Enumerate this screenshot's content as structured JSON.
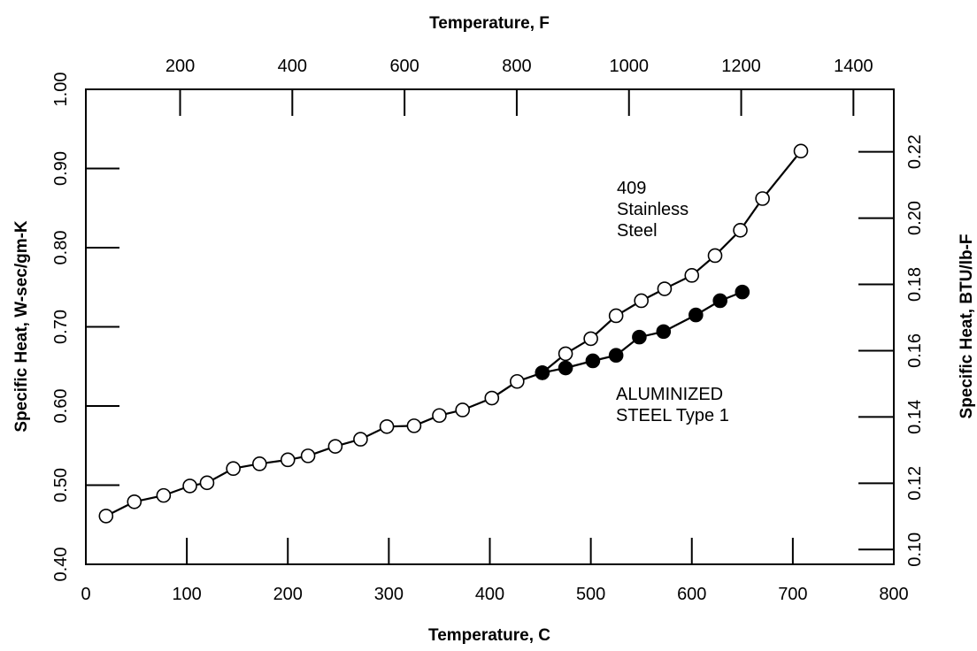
{
  "chart_data": {
    "type": "line",
    "axes": {
      "x_bottom": {
        "label": "Temperature, C",
        "range": [
          0,
          800
        ],
        "ticks": [
          0,
          100,
          200,
          300,
          400,
          500,
          600,
          700,
          800
        ]
      },
      "x_top": {
        "label": "Temperature, F",
        "ticks": [
          200,
          400,
          600,
          800,
          1000,
          1200,
          1400
        ]
      },
      "y_left": {
        "label": "Specific Heat, W-sec/gm-K",
        "range": [
          0.4,
          1.0
        ],
        "ticks": [
          "0.40",
          "0.50",
          "0.60",
          "0.70",
          "0.80",
          "0.90",
          "1.00"
        ]
      },
      "y_right": {
        "label": "Specific Heat, BTU/lb-F",
        "ticks": [
          "0.10",
          "0.12",
          "0.14",
          "0.16",
          "0.18",
          "0.20",
          "0.22"
        ]
      }
    },
    "grid": false,
    "series": [
      {
        "name": "409 Stainless Steel",
        "marker": "open-circle",
        "x": [
          20,
          48,
          77,
          103,
          120,
          146,
          172,
          200,
          220,
          247,
          272,
          298,
          325,
          350,
          373,
          402,
          427,
          452,
          475,
          500,
          525,
          550,
          573,
          600,
          623,
          648,
          670,
          708
        ],
        "y": [
          0.461,
          0.479,
          0.487,
          0.499,
          0.503,
          0.521,
          0.527,
          0.532,
          0.537,
          0.549,
          0.558,
          0.574,
          0.575,
          0.588,
          0.595,
          0.61,
          0.631,
          0.642,
          0.666,
          0.685,
          0.714,
          0.733,
          0.748,
          0.765,
          0.79,
          0.822,
          0.862,
          0.922
        ]
      },
      {
        "name": "ALUMINIZED STEEL Type 1",
        "marker": "filled-circle",
        "x": [
          452,
          475,
          502,
          525,
          548,
          572,
          604,
          628,
          650
        ],
        "y": [
          0.642,
          0.648,
          0.657,
          0.664,
          0.687,
          0.694,
          0.715,
          0.733,
          0.744
        ]
      }
    ],
    "annotations": [
      {
        "lines": [
          "409",
          "Stainless",
          "Steel"
        ],
        "series": 0
      },
      {
        "lines": [
          "ALUMINIZED",
          "STEEL Type 1"
        ],
        "series": 1
      }
    ]
  }
}
